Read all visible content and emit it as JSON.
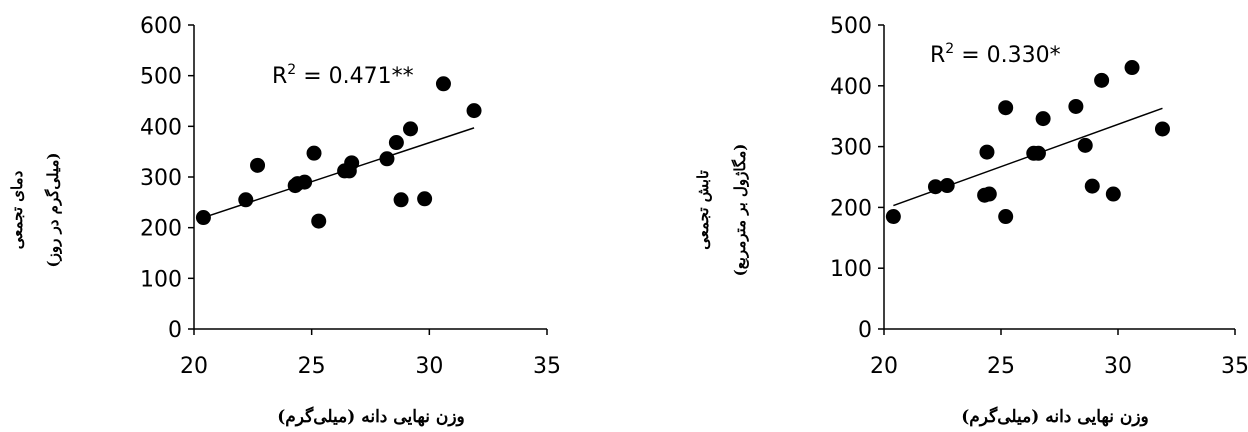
{
  "chart_data": [
    {
      "type": "scatter",
      "xlabel": "وزن نهایی دانه (میلی‌گرم)",
      "ylabel_line1": "دمای تجمعی",
      "ylabel_line2": "(میلی‌گرم در روز)",
      "annotation_prefix": "R",
      "annotation_sup": "2",
      "annotation_value": " = 0.471**",
      "xlim": [
        20,
        35
      ],
      "ylim": [
        0,
        600
      ],
      "xticks": [
        "20",
        "25",
        "30",
        "35"
      ],
      "yticks": [
        "0",
        "100",
        "200",
        "300",
        "400",
        "500",
        "600"
      ],
      "trendline": {
        "x": [
          20.4,
          31.9
        ],
        "y": [
          220,
          397
        ]
      },
      "series": [
        {
          "x": [
            20.4,
            22.2,
            22.7,
            24.3,
            24.4,
            24.7,
            25.1,
            25.3,
            26.4,
            26.6,
            26.7,
            28.2,
            28.6,
            28.8,
            29.2,
            29.8,
            30.6,
            31.9
          ],
          "y": [
            220,
            255,
            323,
            283,
            287,
            290,
            347,
            213,
            312,
            312,
            328,
            336,
            368,
            255,
            395,
            257,
            484,
            431
          ]
        }
      ]
    },
    {
      "type": "scatter",
      "xlabel": "وزن نهایی دانه (میلی‌گرم)",
      "ylabel_line1": "تابش تجمعی",
      "ylabel_line2": "(مگاژول بر مترمربع)",
      "annotation_prefix": "R",
      "annotation_sup": "2",
      "annotation_value": " = 0.330*",
      "xlim": [
        20,
        35
      ],
      "ylim": [
        0,
        500
      ],
      "xticks": [
        "20",
        "25",
        "30",
        "35"
      ],
      "yticks": [
        "0",
        "100",
        "200",
        "300",
        "400",
        "500"
      ],
      "trendline": {
        "x": [
          20.4,
          31.9
        ],
        "y": [
          203,
          363
        ]
      },
      "series": [
        {
          "x": [
            20.4,
            22.2,
            22.7,
            24.3,
            24.4,
            24.5,
            25.2,
            25.2,
            26.4,
            26.6,
            26.8,
            28.2,
            28.6,
            28.9,
            29.3,
            29.8,
            30.6,
            31.9
          ],
          "y": [
            185,
            234,
            236,
            220,
            291,
            222,
            364,
            185,
            289,
            289,
            346,
            366,
            302,
            235,
            409,
            222,
            430,
            329
          ]
        }
      ]
    }
  ]
}
